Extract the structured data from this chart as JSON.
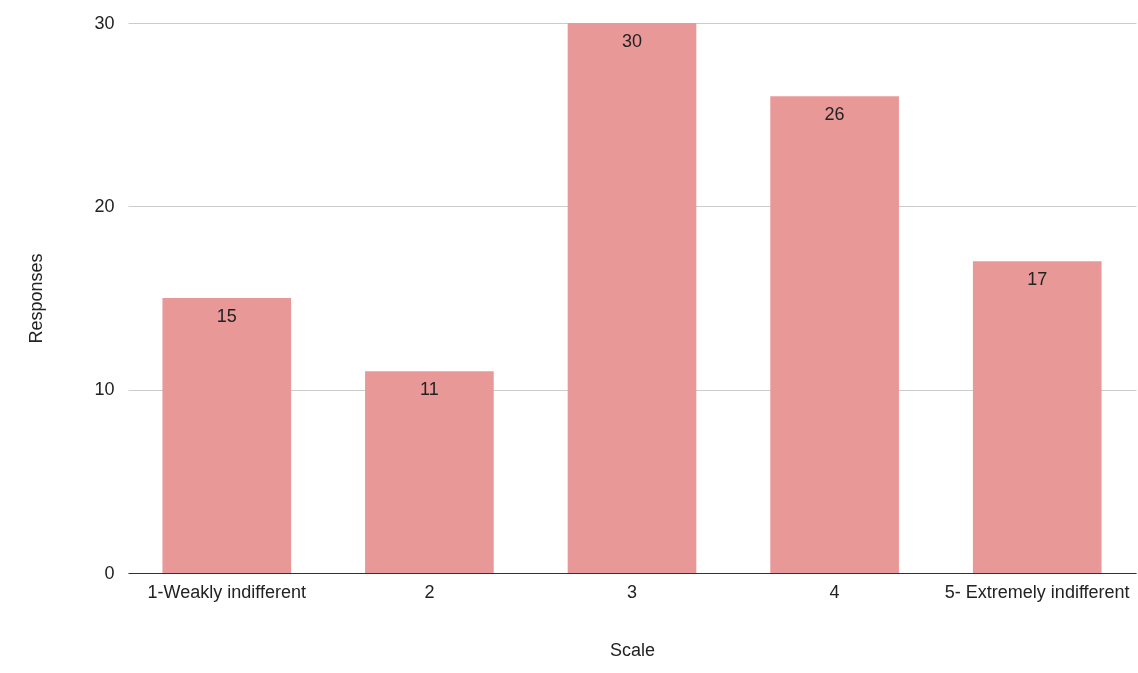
{
  "chart_data": {
    "type": "bar",
    "xlabel": "Scale",
    "ylabel": "Responses",
    "categories": [
      "1-Weakly indifferent",
      "2",
      "3",
      "4",
      "5- Extremely indifferent"
    ],
    "values": [
      15,
      11,
      30,
      26,
      17
    ],
    "color": "#e99898",
    "ylim": [
      0,
      30
    ],
    "yticks": [
      0,
      10,
      20,
      30
    ],
    "grid": "y",
    "data_labels": true
  }
}
